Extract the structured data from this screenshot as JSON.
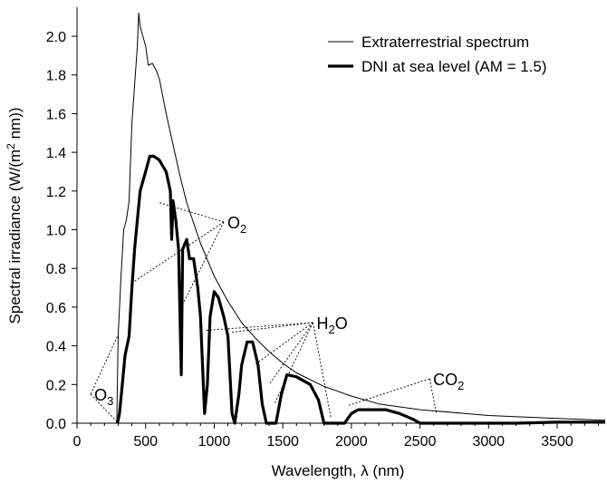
{
  "chart_data": {
    "type": "line",
    "title": "",
    "xlabel": "Wavelength, λ (nm)",
    "ylabel_parts": [
      "Spectral irradiance (W/(m",
      "2",
      " nm))"
    ],
    "xlim": [
      0,
      3850
    ],
    "ylim": [
      0,
      2.15
    ],
    "x_ticks": [
      0,
      500,
      1000,
      1500,
      2000,
      2500,
      3000,
      3500
    ],
    "x_tick_labels": [
      "0",
      "500",
      "1000",
      "1500",
      "2000",
      "2500",
      "3000",
      "3500"
    ],
    "y_ticks": [
      0,
      0.2,
      0.4,
      0.6,
      0.8,
      1.0,
      1.2,
      1.4,
      1.6,
      1.8,
      2.0
    ],
    "y_tick_labels": [
      "0.0",
      "0.2",
      "0.4",
      "0.6",
      "0.8",
      "1.0",
      "1.2",
      "1.4",
      "1.6",
      "1.8",
      "2.0"
    ],
    "grid": false,
    "legend_position": "top-right",
    "series": [
      {
        "name": "Extraterrestrial spectrum",
        "color": "#000000",
        "style": "thin",
        "points": [
          [
            290,
            0.0
          ],
          [
            300,
            0.45
          ],
          [
            320,
            0.75
          ],
          [
            340,
            1.0
          ],
          [
            360,
            1.05
          ],
          [
            380,
            1.15
          ],
          [
            400,
            1.55
          ],
          [
            420,
            1.75
          ],
          [
            440,
            1.95
          ],
          [
            450,
            2.12
          ],
          [
            460,
            2.05
          ],
          [
            480,
            2.0
          ],
          [
            500,
            1.95
          ],
          [
            520,
            1.85
          ],
          [
            550,
            1.86
          ],
          [
            580,
            1.82
          ],
          [
            600,
            1.78
          ],
          [
            650,
            1.6
          ],
          [
            700,
            1.44
          ],
          [
            750,
            1.28
          ],
          [
            800,
            1.14
          ],
          [
            900,
            0.93
          ],
          [
            1000,
            0.76
          ],
          [
            1100,
            0.63
          ],
          [
            1200,
            0.52
          ],
          [
            1300,
            0.44
          ],
          [
            1400,
            0.37
          ],
          [
            1500,
            0.31
          ],
          [
            1600,
            0.26
          ],
          [
            1800,
            0.19
          ],
          [
            2000,
            0.14
          ],
          [
            2200,
            0.1
          ],
          [
            2500,
            0.07
          ],
          [
            3000,
            0.04
          ],
          [
            3500,
            0.025
          ],
          [
            3850,
            0.015
          ]
        ]
      },
      {
        "name": "DNI at sea level (AM = 1.5)",
        "color": "#000000",
        "style": "thick",
        "points": [
          [
            295,
            0.0
          ],
          [
            310,
            0.05
          ],
          [
            330,
            0.2
          ],
          [
            350,
            0.35
          ],
          [
            380,
            0.45
          ],
          [
            400,
            0.7
          ],
          [
            420,
            0.9
          ],
          [
            440,
            1.05
          ],
          [
            460,
            1.2
          ],
          [
            480,
            1.25
          ],
          [
            500,
            1.3
          ],
          [
            530,
            1.38
          ],
          [
            560,
            1.38
          ],
          [
            600,
            1.36
          ],
          [
            650,
            1.3
          ],
          [
            680,
            1.2
          ],
          [
            690,
            0.95
          ],
          [
            700,
            1.15
          ],
          [
            720,
            1.05
          ],
          [
            740,
            0.9
          ],
          [
            760,
            0.25
          ],
          [
            770,
            0.9
          ],
          [
            800,
            0.95
          ],
          [
            820,
            0.85
          ],
          [
            850,
            0.85
          ],
          [
            880,
            0.7
          ],
          [
            900,
            0.55
          ],
          [
            930,
            0.05
          ],
          [
            950,
            0.2
          ],
          [
            970,
            0.55
          ],
          [
            1000,
            0.68
          ],
          [
            1030,
            0.65
          ],
          [
            1070,
            0.55
          ],
          [
            1100,
            0.45
          ],
          [
            1130,
            0.05
          ],
          [
            1150,
            0.0
          ],
          [
            1180,
            0.15
          ],
          [
            1200,
            0.3
          ],
          [
            1240,
            0.42
          ],
          [
            1280,
            0.42
          ],
          [
            1320,
            0.3
          ],
          [
            1350,
            0.1
          ],
          [
            1380,
            0.0
          ],
          [
            1450,
            0.0
          ],
          [
            1490,
            0.15
          ],
          [
            1530,
            0.25
          ],
          [
            1600,
            0.24
          ],
          [
            1700,
            0.2
          ],
          [
            1760,
            0.12
          ],
          [
            1800,
            0.0
          ],
          [
            1950,
            0.0
          ],
          [
            2000,
            0.05
          ],
          [
            2050,
            0.07
          ],
          [
            2150,
            0.07
          ],
          [
            2250,
            0.07
          ],
          [
            2350,
            0.05
          ],
          [
            2450,
            0.02
          ],
          [
            2500,
            0.0
          ],
          [
            3200,
            0.0
          ],
          [
            3500,
            0.005
          ],
          [
            3850,
            0.005
          ]
        ]
      }
    ],
    "annotations": [
      {
        "base": "O",
        "sub": "3",
        "label_at": [
          100,
          0.15
        ],
        "lines_to": [
          [
            295,
            0.45
          ],
          [
            300,
            0.0
          ]
        ]
      },
      {
        "base": "O",
        "sub": "2",
        "label_at": [
          1070,
          1.04
        ],
        "lines_to": [
          [
            600,
            1.14
          ],
          [
            390,
            0.72
          ],
          [
            760,
            0.6
          ]
        ]
      },
      {
        "base": "H",
        "sub": "2",
        "tail": "O",
        "label_at": [
          1720,
          0.52
        ],
        "lines_to": [
          [
            940,
            0.48
          ],
          [
            1130,
            0.47
          ],
          [
            1290,
            0.3
          ],
          [
            1400,
            0.2
          ],
          [
            1440,
            0.1
          ],
          [
            1850,
            0.03
          ]
        ]
      },
      {
        "base": "CO",
        "sub": "2",
        "label_at": [
          2570,
          0.23
        ],
        "lines_to": [
          [
            1970,
            0.09
          ],
          [
            2620,
            0.05
          ]
        ]
      }
    ]
  }
}
